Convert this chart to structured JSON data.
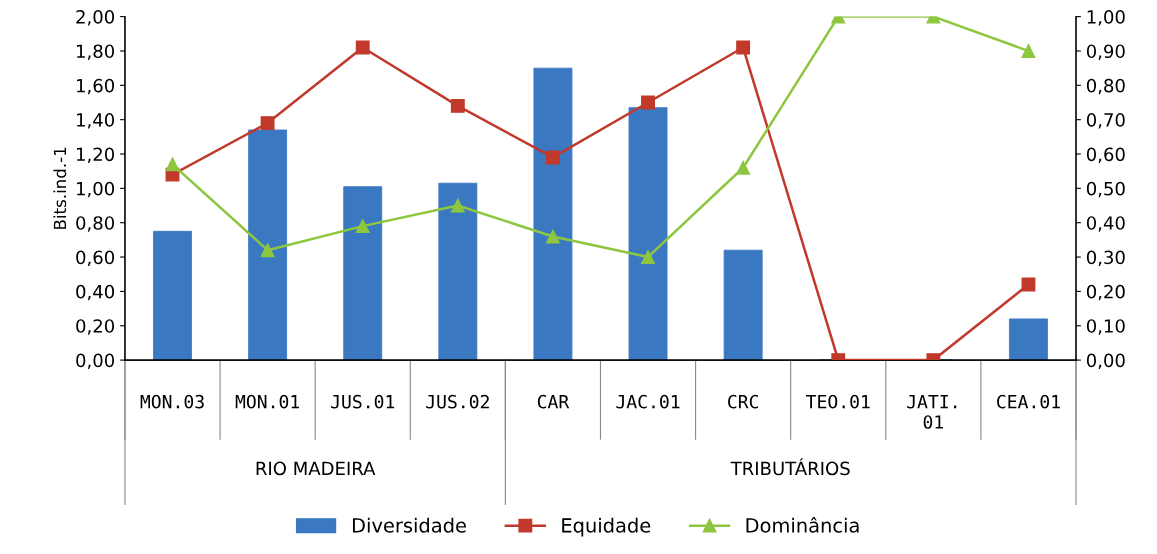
{
  "chart_data": {
    "type": "bar",
    "categories": [
      "MON.03",
      "MON.01",
      "JUS.01",
      "JUS.02",
      "CAR",
      "JAC.01",
      "CRC",
      "TEO.01",
      "JATI.\n01",
      "CEA.01"
    ],
    "series": [
      {
        "name": "Diversidade",
        "color": "#3a78c2",
        "values": [
          0.75,
          1.34,
          1.01,
          1.03,
          1.7,
          1.47,
          0.64,
          0,
          0,
          0.24
        ]
      },
      {
        "name": "Equidade",
        "type": "line",
        "axis": "y2",
        "marker": "square",
        "color": "#c0392b",
        "values": [
          0.54,
          0.69,
          0.91,
          0.74,
          0.59,
          0.75,
          0.91,
          0.0,
          0.0,
          0.22
        ]
      },
      {
        "name": "Dominância",
        "type": "line",
        "axis": "y2",
        "marker": "triangle",
        "color": "#8dc63f",
        "values": [
          0.57,
          0.32,
          0.39,
          0.45,
          0.36,
          0.3,
          0.56,
          1.0,
          1.0,
          0.9
        ]
      }
    ],
    "ylabel": "Bits.ind.-1",
    "ylim": [
      0,
      2
    ],
    "yticks": [
      {
        "value": 0,
        "label": "0,00"
      },
      {
        "value": 0.2,
        "label": "0,20"
      },
      {
        "value": 0.4,
        "label": "0,40"
      },
      {
        "value": 0.6,
        "label": "0,60"
      },
      {
        "value": 0.8,
        "label": "0,80"
      },
      {
        "value": 1.0,
        "label": "1,00"
      },
      {
        "value": 1.2,
        "label": "1,20"
      },
      {
        "value": 1.4,
        "label": "1,40"
      },
      {
        "value": 1.6,
        "label": "1,60"
      },
      {
        "value": 1.8,
        "label": "1,80"
      },
      {
        "value": 2.0,
        "label": "2,00"
      }
    ],
    "y2lim": [
      0,
      1
    ],
    "y2ticks": [
      {
        "value": 0,
        "label": "0,00"
      },
      {
        "value": 0.1,
        "label": "0,10"
      },
      {
        "value": 0.2,
        "label": "0,20"
      },
      {
        "value": 0.3,
        "label": "0,30"
      },
      {
        "value": 0.4,
        "label": "0,40"
      },
      {
        "value": 0.5,
        "label": "0,50"
      },
      {
        "value": 0.6,
        "label": "0,60"
      },
      {
        "value": 0.7,
        "label": "0,70"
      },
      {
        "value": 0.8,
        "label": "0,80"
      },
      {
        "value": 0.9,
        "label": "0,90"
      },
      {
        "value": 1.0,
        "label": "1,00"
      }
    ],
    "annotations": [
      "RIO MADEIRA",
      "TRIBUTÁRIOS"
    ],
    "grid": false,
    "legend": "bottom"
  }
}
